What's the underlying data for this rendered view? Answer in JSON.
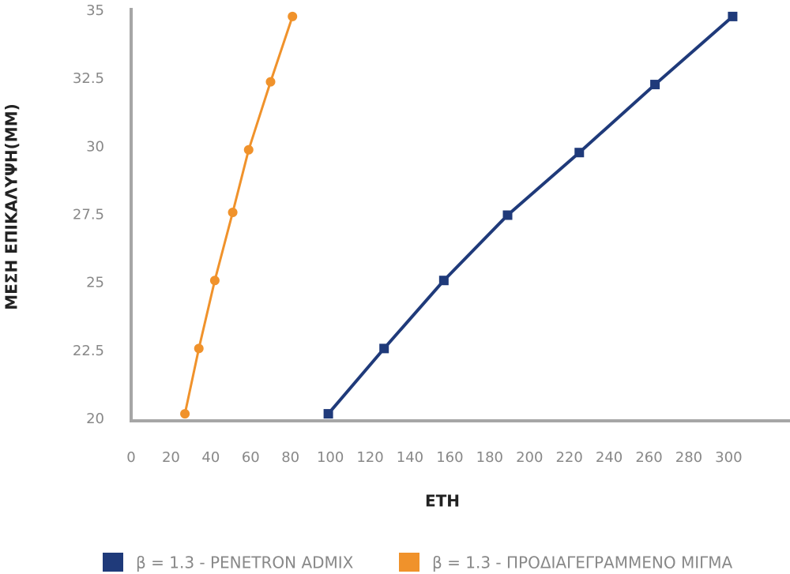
{
  "chart_data": {
    "type": "line",
    "x_label": "ΕΤΗ",
    "y_label": "ΜΕΣΗ ΕΠΙΚΑΛΥΨΗ(ΜΜ)",
    "series": [
      {
        "name": "β = 1.3 - PENETRON ADMIX",
        "color": "#1f3a7a",
        "marker": "square",
        "x": [
          99,
          127,
          157,
          189,
          225,
          263,
          302
        ],
        "values": [
          20.2,
          22.6,
          25.1,
          27.5,
          29.8,
          32.3,
          34.8
        ]
      },
      {
        "name": "β = 1.3 - ΠΡΟΔΙΑΓΕΓΡΑΜΜΕΝΟ ΜΙΓΜΑ",
        "color": "#f0922b",
        "marker": "circle",
        "x": [
          27,
          34,
          42,
          51,
          59,
          70,
          81
        ],
        "values": [
          20.2,
          22.6,
          25.1,
          27.6,
          29.9,
          32.4,
          34.8
        ]
      }
    ],
    "xlim": [
      0,
      330
    ],
    "xticks": [
      0,
      20,
      40,
      60,
      80,
      100,
      120,
      140,
      160,
      180,
      200,
      220,
      240,
      260,
      280,
      300
    ],
    "ylim": [
      20,
      35
    ],
    "yticks": [
      20,
      22.5,
      25,
      27.5,
      30,
      32.5,
      35
    ],
    "legend": "bottom"
  }
}
